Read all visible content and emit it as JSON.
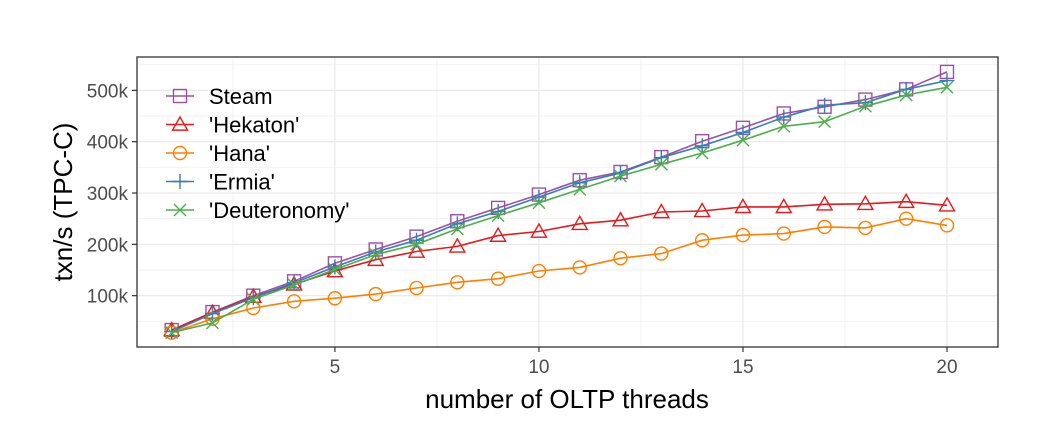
{
  "chart_data": {
    "type": "line",
    "title": "",
    "xlabel": "number of OLTP threads",
    "ylabel": "txn/s (TPC-C)",
    "xlim": [
      0.15,
      21.25
    ],
    "ylim": [
      0,
      565000
    ],
    "x_ticks": [
      5,
      10,
      15,
      20
    ],
    "x_tick_labels": [
      "5",
      "10",
      "15",
      "20"
    ],
    "y_ticks": [
      100000,
      200000,
      300000,
      400000,
      500000
    ],
    "y_tick_labels": [
      "100k",
      "200k",
      "300k",
      "400k",
      "500k"
    ],
    "grid": true,
    "legend_position": "top-left",
    "x": [
      1,
      2,
      3,
      4,
      5,
      6,
      7,
      8,
      9,
      10,
      11,
      12,
      13,
      14,
      15,
      16,
      17,
      18,
      19,
      20
    ],
    "series": [
      {
        "name": "Steam",
        "color": "#9E4FA8",
        "marker": "square",
        "values": [
          33000,
          68000,
          100000,
          128000,
          163000,
          190000,
          215000,
          245000,
          271000,
          297000,
          325000,
          341000,
          370000,
          401000,
          427000,
          455000,
          468000,
          482000,
          502000,
          536000
        ]
      },
      {
        "name": "'Hekaton'",
        "color": "#E41A1C",
        "marker": "triangle",
        "values": [
          33000,
          67000,
          98000,
          122000,
          148000,
          170000,
          186000,
          196000,
          217000,
          225000,
          240000,
          247000,
          263000,
          265000,
          273000,
          273000,
          278000,
          279000,
          283000,
          276000
        ]
      },
      {
        "name": "'Hana'",
        "color": "#FF7F00",
        "marker": "circle",
        "values": [
          28000,
          55000,
          76000,
          89000,
          95000,
          103000,
          115000,
          126000,
          133000,
          148000,
          155000,
          173000,
          182000,
          208000,
          218000,
          221000,
          234000,
          232000,
          250000,
          237000
        ]
      },
      {
        "name": "'Ermia'",
        "color": "#377EB8",
        "marker": "plus",
        "values": [
          30000,
          65000,
          96000,
          125000,
          156000,
          185000,
          208000,
          240000,
          264000,
          292000,
          320000,
          339000,
          369000,
          392000,
          418000,
          448000,
          471000,
          476000,
          502000,
          519000
        ]
      },
      {
        "name": "'Deuteronomy'",
        "color": "#4DAF4A",
        "marker": "cross",
        "values": [
          28000,
          47000,
          93000,
          121000,
          151000,
          180000,
          200000,
          230000,
          256000,
          281000,
          307000,
          333000,
          356000,
          378000,
          403000,
          430000,
          439000,
          469000,
          491000,
          506000
        ]
      }
    ]
  }
}
